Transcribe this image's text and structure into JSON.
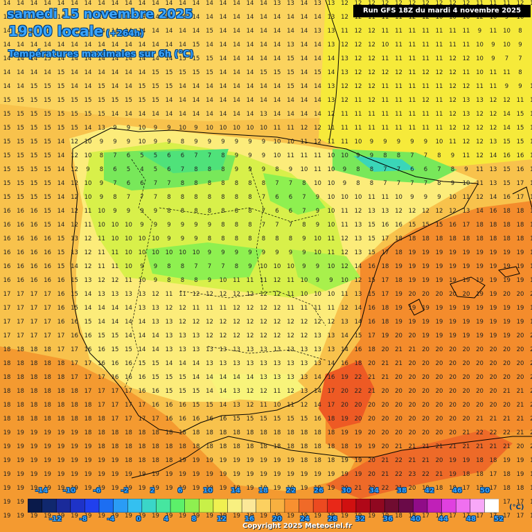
{
  "header": {
    "title": "samedi 15 novembre 2025",
    "time": "19:00 locale",
    "lead": "(+264h)",
    "subtitle": "Températures maximales sur 6h (°C)"
  },
  "run_label": "Run GFS 18Z du mardi 4 novembre 2025",
  "copyright": "Copyright 2025 Meteociel.fr",
  "legend": {
    "unit": "(°C)",
    "top_labels": [
      "-14",
      "-10",
      "-6",
      "-2",
      "2",
      "6",
      "10",
      "14",
      "18",
      "22",
      "26",
      "30",
      "34",
      "38",
      "42",
      "46",
      "50"
    ],
    "bottom_labels": [
      "-12",
      "-8",
      "-4",
      "0",
      "4",
      "8",
      "12",
      "16",
      "20",
      "24",
      "28",
      "32",
      "36",
      "40",
      "44",
      "48",
      "52"
    ],
    "colors": [
      "#0a1a4a",
      "#10286e",
      "#1a2a9a",
      "#1e33c8",
      "#2040ee",
      "#1c6ef2",
      "#2a9cf5",
      "#34c0f0",
      "#3ad6c8",
      "#46e6a0",
      "#5cf06a",
      "#8ef050",
      "#c8f048",
      "#f0f050",
      "#f8f080",
      "#fce898",
      "#fcd060",
      "#f8b040",
      "#f89030",
      "#f06a28",
      "#ec4a20",
      "#e82818",
      "#d01010",
      "#b00818",
      "#900820",
      "#700c30",
      "#6a0a48",
      "#900c88",
      "#c020b8",
      "#e040e0",
      "#f070f0",
      "#f8a8f8",
      "#ffffff"
    ]
  },
  "grid_values": [
    "14 14 14 14 14 14 14 14 14 14 14 14 14 14 14 14 14 14 14 14 13 13 14 13 13 12 12 12 12 12 12 12 12 12 12 11 11 11 12 12",
    "14 14 14 14 14 14 14 14 14 14 14 14 14 14 14 14 14 14 14 14 14 14 14 14 13 12 12 11 11 11 12 12 10 10 10 12 10 9 10 9",
    "14 14 14 14 14 14 14 14 14 14 14 14 14 14 14 15 14 14 14 14 14 14 14 13 13 11 12 12 11 11 11 11 11 11 11 9 11 10 8 8",
    "14 14 14 14 14 14 14 14 14 14 14 14 14 14 15 14 14 14 14 14 14 13 14 14 13 12 12 12 10 11 11 11 11 11 11 10 9 10 9 8",
    "14 14 14 15 14 14 14 14 14 14 14 14 14 15 15 15 14 14 14 14 14 15 14 14 14 13 12 12 11 11 11 11 11 12 12 10 9 7 7 9",
    "14 14 14 14 15 14 14 14 14 14 14 15 15 15 15 15 14 14 14 15 15 15 14 15 14 13 12 12 12 12 11 12 12 12 11 10 11 11 8 9",
    "14 14 15 15 15 14 14 15 14 14 15 15 15 14 14 14 14 14 14 14 14 15 14 14 13 12 12 12 11 11 11 11 11 12 12 11 11 9 9 11",
    "15 15 15 15 15 15 15 15 15 15 15 15 14 14 14 14 14 14 14 14 14 14 14 14 13 12 11 12 11 11 11 12 11 12 13 13 12 12 11 12",
    "15 15 15 15 15 15 15 15 14 14 14 14 14 14 14 14 14 14 14 13 14 14 14 14 12 11 11 11 11 11 11 11 11 12 13 12 12 14 15 14",
    "15 15 15 15 15 15 14 13 9 9 10 9 9 10 9 10 10 10 10 10 11 11 12 12 11 11 11 11 11 11 11 11 11 12 12 12 12 14 15 14",
    "15 15 15 15 14 12 10 9 9 9 10 9 9 8 9 9 9 9 9 9 10 10 11 12 11 11 10 9 9 9 9 9 10 11 12 12 13 15 15 16",
    "15 15 15 15 14 12 10 8 7 6 5 5 6 6 7 7 8 9 9 9 10 11 11 11 10 10 9 9 8 8 7 7 8 9 11 12 14 16 16 16",
    "15 15 15 15 14 12 9 8 6 5 4 5 6 7 8 8 8 9 9 9 8 9 10 11 10 9 8 8 7 7 6 6 7 8 9 11 13 15 16 16",
    "15 15 15 15 14 12 10 9 7 6 6 7 7 8 8 8 8 8 8 8 7 7 8 10 10 9 8 8 7 7 7 7 8 9 10 11 13 15 17 17",
    "15 15 15 15 14 12 10 9 8 7 7 7 8 8 8 8 8 8 8 7 6 6 7 9 10 10 10 11 11 10 9 9 9 10 11 12 14 16 17 17",
    "16 16 16 15 14 12 11 10 9 9 9 9 8 8 8 8 8 8 8 7 6 6 7 9 10 11 12 13 13 12 12 12 12 12 13 14 16 18 18 18",
    "16 16 16 15 14 12 11 10 10 10 9 9 9 9 9 9 8 8 8 7 7 7 8 9 10 11 13 15 16 16 15 15 15 16 17 18 18 18 18 18",
    "16 16 16 16 15 13 12 11 10 10 10 10 9 9 9 8 8 8 8 8 8 8 9 10 11 12 13 15 17 18 18 18 18 18 18 18 18 18 18 18",
    "16 16 16 16 15 13 12 11 11 10 10 10 10 10 10 9 9 9 9 9 9 9 9 10 11 12 13 15 17 18 19 19 19 19 19 19 19 19 19 18",
    "16 16 16 16 15 14 12 11 11 10 9 9 8 8 7 7 7 8 9 10 10 10 9 9 10 12 14 16 18 19 19 19 19 19 19 19 19 19 19 19",
    "16 16 16 16 16 15 13 12 12 11 10 9 8 8 8 9 10 11 11 11 12 11 10 9 9 10 12 15 17 18 19 19 19 19 19 19 19 19 19 19",
    "17 17 17 17 16 15 14 13 13 13 13 12 11 11 12 12 12 12 12 12 12 11 10 10 10 11 13 15 17 19 20 20 20 20 20 19 19 20 20 20",
    "17 17 17 17 16 15 14 14 14 14 13 13 12 12 11 11 11 12 12 12 12 11 11 11 11 12 14 16 18 19 19 19 19 19 19 19 19 19 19 19",
    "17 17 17 17 16 16 15 14 14 14 14 13 13 12 12 12 12 12 12 12 12 12 12 12 12 13 14 16 18 19 19 19 19 19 19 19 19 19 19 19",
    "17 17 17 17 17 16 16 15 15 14 14 14 13 13 13 12 12 12 12 12 12 12 12 13 13 14 15 17 19 20 20 19 19 19 19 19 19 19 20 20",
    "18 18 18 18 17 17 16 16 15 15 14 14 13 13 13 13 13 13 13 13 13 13 13 13 13 14 16 18 20 21 21 20 20 20 20 20 20 20 20 20",
    "18 18 18 18 18 17 17 16 16 16 15 15 14 14 14 13 13 13 13 13 13 13 13 13 14 16 18 20 21 21 20 20 20 20 20 20 20 20 20 20",
    "18 18 18 18 18 17 17 17 16 16 16 15 15 15 14 14 14 14 14 13 13 13 13 14 16 19 22 21 21 20 20 20 20 20 20 20 20 20 20 20",
    "18 18 18 18 18 18 17 17 17 17 16 16 15 15 15 14 14 13 12 12 11 12 13 14 17 20 22 21 20 20 20 20 20 20 20 20 20 21 21 21",
    "18 18 18 18 18 18 18 17 17 17 17 16 16 16 15 15 14 13 12 11 10 11 12 14 17 20 20 20 20 20 20 20 20 20 20 20 20 20 21 21",
    "18 18 18 18 18 18 18 18 17 17 17 17 16 16 16 16 16 15 15 15 15 15 15 16 18 19 20 20 20 20 20 20 20 20 20 21 21 21 21 21",
    "19 19 19 19 19 19 18 18 18 18 18 18 18 18 18 18 18 18 18 18 18 18 18 18 18 19 19 20 20 20 20 20 20 20 21 22 22 22 21 21",
    "19 19 19 19 19 19 19 18 18 18 18 18 18 18 18 18 18 18 18 18 18 18 18 18 18 18 19 19 20 21 21 21 21 21 21 21 21 21 20 20",
    "19 19 19 19 19 19 19 19 19 18 18 18 18 19 19 19 19 19 19 19 19 19 18 18 18 19 19 20 21 22 21 21 20 19 19 18 18 19 19 19",
    "19 19 19 19 19 19 19 19 19 19 19 19 19 19 19 19 19 19 19 19 19 19 19 19 19 19 19 20 21 22 23 22 21 19 18 18 17 18 19 19",
    "19 19 19 19 19 19 19 19 19 19 19 19 19 19 19 19 19 19 19 19 19 19 19 19 19 20 21 22 22 21 20 19 18 18 17 17 17 18 18 19",
    "19 19 19 19 19 19 19 19 19 19 19 19 19 19 19 19 19 19 19 19 19 19 19 19 19 20 20 20 20 19 19 18 17 17 17 17 17 17 17 18",
    "19 19 19 19 19 19 19 19 19 19 19 19 19 19 19 19 19 19 19 19 19 19 19 19 19 19 19 19 19 18 18 17 17 17 17 17 17 17 17 17"
  ]
}
